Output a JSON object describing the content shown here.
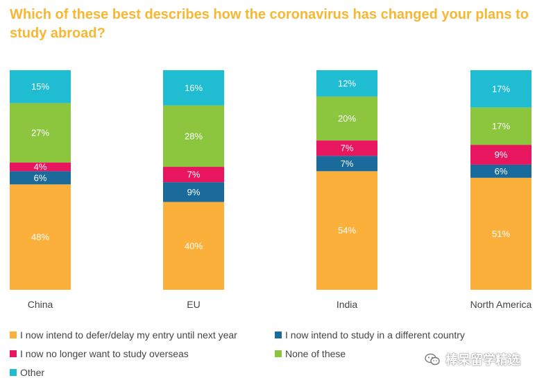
{
  "title": "Which of these best describes how the coronavirus has changed your plans to study abroad?",
  "chart_data": {
    "type": "bar",
    "stacked": true,
    "categories": [
      "China",
      "EU",
      "India",
      "North America"
    ],
    "ylim": [
      0,
      100
    ],
    "grid": false,
    "legend_position": "bottom",
    "series": [
      {
        "name": "I now intend to defer/delay my entry until next year",
        "color": "#fbb03b",
        "values": [
          48,
          40,
          54,
          51
        ],
        "labels": [
          "48%",
          "40%",
          "54%",
          "51%"
        ]
      },
      {
        "name": "I now intend to study in a different country",
        "color": "#1a6b9c",
        "values": [
          6,
          9,
          7,
          6
        ],
        "labels": [
          "6%",
          "9%",
          "7%",
          "6%"
        ]
      },
      {
        "name": "I now no longer want to study overseas",
        "color": "#e8155f",
        "values": [
          4,
          7,
          7,
          9
        ],
        "labels": [
          "4%",
          "7%",
          "7%",
          "9%"
        ]
      },
      {
        "name": "None of these",
        "color": "#8cc63f",
        "values": [
          27,
          28,
          20,
          17
        ],
        "labels": [
          "27%",
          "28%",
          "20%",
          "17%"
        ]
      },
      {
        "name": "Other",
        "color": "#1fbcd2",
        "values": [
          15,
          16,
          12,
          17
        ],
        "labels": [
          "15%",
          "16%",
          "12%",
          "17%"
        ]
      }
    ]
  },
  "legend": {
    "items": [
      {
        "label": "I now intend to defer/delay my entry until next year",
        "color": "#fbb03b"
      },
      {
        "label": "I now intend to study in a different country",
        "color": "#1a6b9c"
      },
      {
        "label": "I now no longer want to study overseas",
        "color": "#e8155f"
      },
      {
        "label": "None of these",
        "color": "#8cc63f"
      },
      {
        "label": "Other",
        "color": "#1fbcd2"
      }
    ]
  },
  "watermark": {
    "text": "棒呆留学精选",
    "icon": "wechat-icon"
  }
}
